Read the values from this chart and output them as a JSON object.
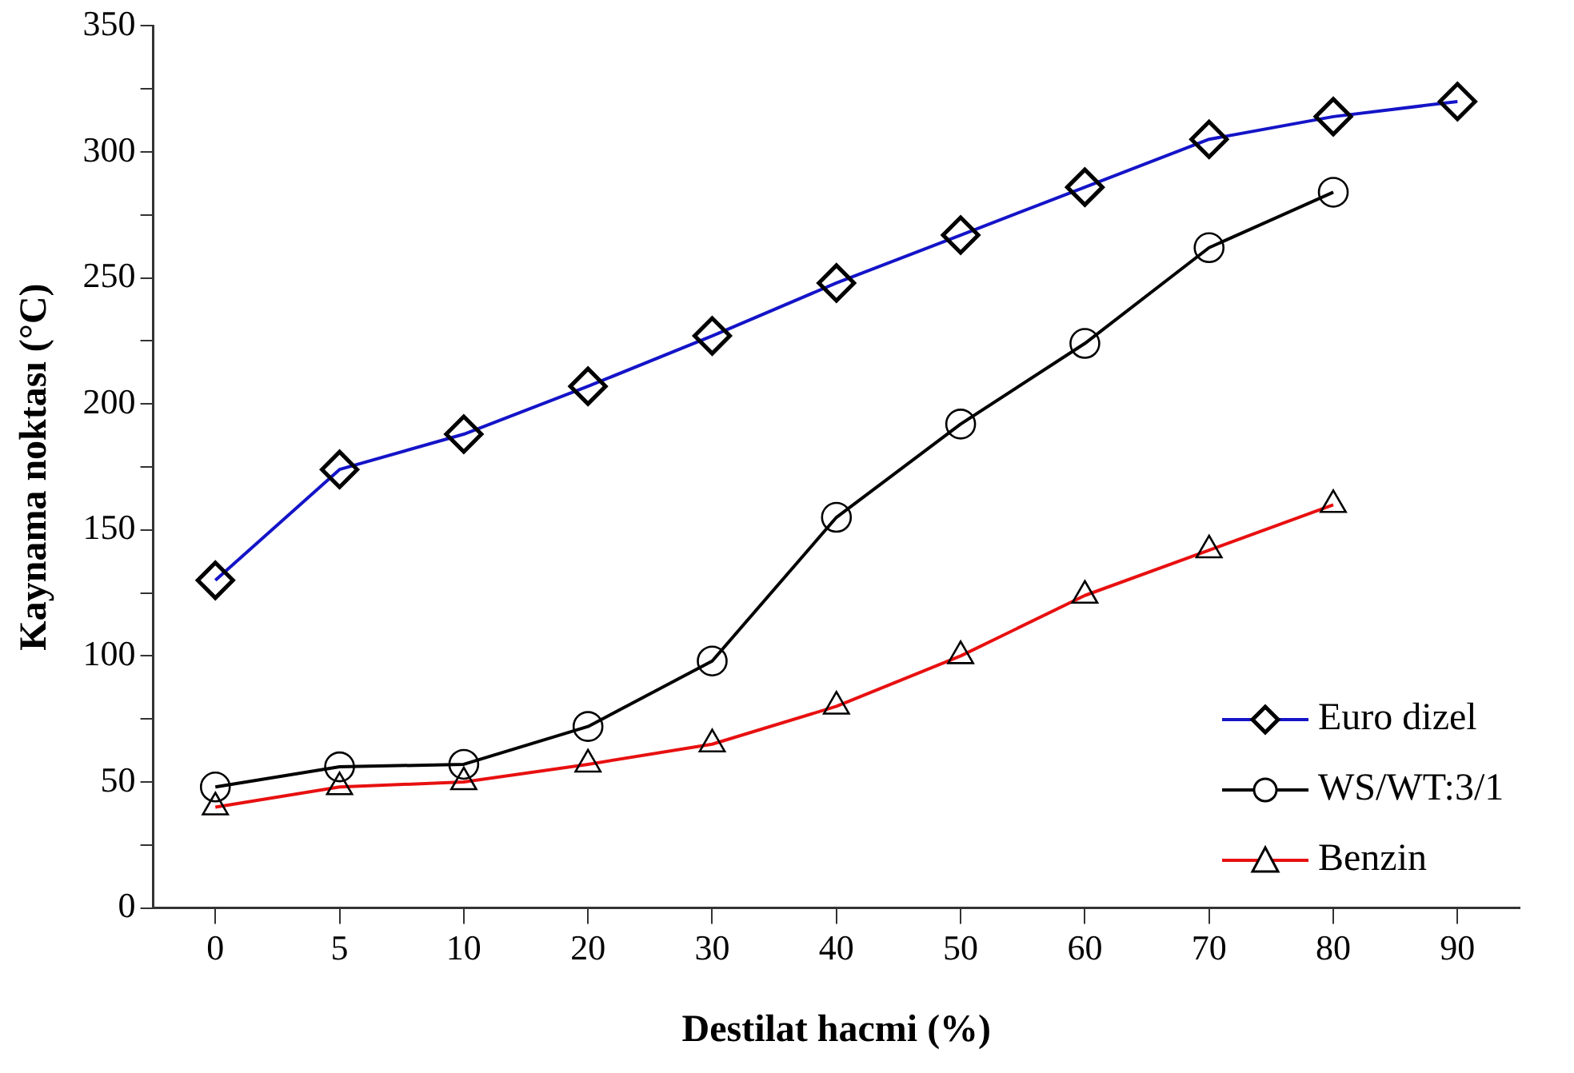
{
  "chart_data": {
    "type": "line",
    "xlabel": "Destilat hacmi (%)",
    "ylabel": "Kaynama noktası (°C)",
    "categories": [
      "0",
      "5",
      "10",
      "20",
      "30",
      "40",
      "50",
      "60",
      "70",
      "80",
      "90"
    ],
    "ylim": [
      0,
      350
    ],
    "yticks": [
      0,
      {
        "value": 25,
        "label": null
      },
      50,
      {
        "value": 75,
        "label": null
      },
      100,
      {
        "value": 125,
        "label": null
      },
      150,
      {
        "value": 175,
        "label": null
      },
      200,
      {
        "value": 225,
        "label": null
      },
      250,
      {
        "value": 275,
        "label": null
      },
      300,
      {
        "value": 325,
        "label": null
      },
      350
    ],
    "grid": false,
    "legend": "bottom right",
    "line_style": "solid",
    "series": [
      {
        "name": "Euro dizel",
        "color": "#1414c8",
        "marker": "diamond",
        "values": [
          130,
          174,
          188,
          207,
          227,
          248,
          267,
          286,
          305,
          314,
          320
        ]
      },
      {
        "name": "WS/WT:3/1",
        "color": "#000000",
        "marker": "circle",
        "values": [
          48,
          56,
          57,
          72,
          98,
          155,
          192,
          224,
          262,
          284,
          null
        ]
      },
      {
        "name": "Benzin",
        "color": "#e81010",
        "marker": "triangle",
        "values": [
          40,
          48,
          50,
          57,
          65,
          80,
          100,
          124,
          142,
          160,
          null
        ]
      }
    ]
  }
}
